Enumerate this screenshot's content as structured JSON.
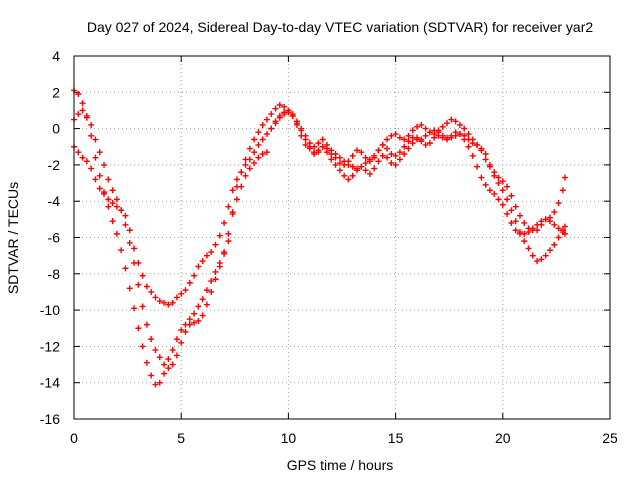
{
  "chart_data": {
    "type": "scatter",
    "title": "Day 027 of 2024, Sidereal Day-to-day VTEC variation (SDTVAR) for receiver yar2",
    "xlabel": "GPS time / hours",
    "ylabel": "SDTVAR / TECUs",
    "xlim": [
      0,
      25
    ],
    "ylim": [
      -16,
      4
    ],
    "xticks": [
      0,
      5,
      10,
      15,
      20,
      25
    ],
    "yticks": [
      -16,
      -14,
      -12,
      -10,
      -8,
      -6,
      -4,
      -2,
      0,
      2,
      4
    ],
    "grid": true,
    "marker": "plus",
    "color": "#ff0000",
    "series": [
      {
        "x": [
          0.0,
          0.2,
          0.4,
          0.6,
          0.8,
          1.0,
          1.2,
          1.4,
          1.6,
          1.8,
          2.0,
          2.2,
          2.4,
          2.6,
          2.8,
          3.0,
          3.2,
          3.4,
          3.6,
          3.8,
          4.0,
          4.2,
          4.4,
          4.6,
          4.8,
          5.0,
          5.2,
          5.4,
          5.6,
          5.8,
          6.0,
          6.2,
          6.4,
          6.6,
          6.8,
          7.0,
          7.2,
          7.4,
          7.6,
          7.8,
          8.0,
          8.2,
          8.4,
          8.6,
          8.8,
          9.0,
          9.2,
          9.4,
          9.6,
          9.8,
          10.0,
          10.2,
          10.4,
          10.6,
          10.8,
          11.0,
          11.2,
          11.4,
          11.6,
          11.8,
          12.0,
          12.2,
          12.4,
          12.6,
          12.8,
          13.0,
          13.2,
          13.4,
          13.6,
          13.8,
          14.0,
          14.2,
          14.4,
          14.6,
          14.8,
          15.0,
          15.2,
          15.4,
          15.6,
          15.8,
          16.0,
          16.2,
          16.4,
          16.6,
          16.8,
          17.0,
          17.2,
          17.4,
          17.6,
          17.8,
          18.0,
          18.2,
          18.4,
          18.6,
          18.8,
          19.0,
          19.2,
          19.4,
          19.6,
          19.8,
          20.0,
          20.2,
          20.4,
          20.6,
          20.8,
          21.0,
          21.2,
          21.4,
          21.6,
          21.8,
          22.0,
          22.2,
          22.4,
          22.6,
          22.8,
          22.9
        ],
        "y": [
          -1.0,
          -1.3,
          -1.6,
          -1.8,
          -2.2,
          -2.8,
          -3.3,
          -3.6,
          -3.9,
          -4.1,
          -4.3,
          -4.5,
          -4.8,
          -5.6,
          -6.6,
          -7.4,
          -8.1,
          -8.7,
          -9.0,
          -9.3,
          -9.5,
          -9.6,
          -9.7,
          -9.6,
          -9.3,
          -9.1,
          -8.9,
          -8.5,
          -8.1,
          -7.6,
          -7.3,
          -7.0,
          -6.8,
          -6.4,
          -5.9,
          -5.2,
          -4.3,
          -3.4,
          -2.8,
          -2.4,
          -2.0,
          -1.7,
          -1.3,
          -0.9,
          -0.6,
          -0.3,
          0.0,
          0.3,
          0.6,
          0.8,
          0.9,
          0.7,
          0.2,
          -0.4,
          -0.9,
          -1.1,
          -1.3,
          -1.2,
          -1.0,
          -1.1,
          -1.4,
          -1.6,
          -1.9,
          -2.0,
          -1.8,
          -1.5,
          -1.2,
          -1.3,
          -1.6,
          -1.8,
          -1.6,
          -1.2,
          -0.9,
          -1.1,
          -1.4,
          -1.5,
          -1.3,
          -1.0,
          -0.7,
          -0.5,
          -0.5,
          -0.6,
          -0.4,
          -0.2,
          -0.1,
          -0.2,
          -0.4,
          -0.5,
          -0.5,
          -0.4,
          -0.3,
          -0.4,
          -0.6,
          -0.8,
          -0.9,
          -1.2,
          -1.7,
          -2.1,
          -2.4,
          -2.7,
          -2.9,
          -3.2,
          -3.7,
          -4.3,
          -4.8,
          -5.2,
          -5.5,
          -5.6,
          -5.6,
          -5.3,
          -5.0,
          -4.9,
          -4.6,
          -4.1,
          -3.4,
          -2.7
        ]
      },
      {
        "x": [
          0.0,
          0.2,
          0.4,
          0.6,
          0.8,
          1.0,
          1.2,
          1.4,
          1.6,
          1.8,
          2.0,
          2.2,
          2.4,
          2.6,
          2.8,
          3.0,
          3.2,
          3.4,
          3.6,
          3.8,
          4.0,
          4.2,
          4.4,
          4.6,
          4.8,
          5.0,
          5.2,
          5.4,
          5.6,
          5.8,
          6.0,
          6.2,
          6.4,
          6.6,
          6.8,
          7.0,
          7.2,
          7.4,
          7.6,
          7.8,
          8.0,
          8.2,
          8.4,
          8.6,
          8.8,
          9.0,
          9.2,
          9.4,
          9.6,
          9.8,
          10.0,
          10.2,
          10.4,
          10.6,
          10.8,
          11.0,
          11.2,
          11.4,
          11.6,
          11.8,
          12.0,
          12.2,
          12.4,
          12.6,
          12.8,
          13.0,
          13.2,
          13.4,
          13.6,
          13.8,
          14.0,
          14.2,
          14.4,
          14.6,
          14.8,
          15.0,
          15.2,
          15.4,
          15.6,
          15.8,
          16.0,
          16.2,
          16.4,
          16.6,
          16.8,
          17.0,
          17.2,
          17.4,
          17.6,
          17.8,
          18.0,
          18.2,
          18.4,
          18.6,
          18.8,
          19.0,
          19.2,
          19.4,
          19.6,
          19.8,
          20.0,
          20.2,
          20.4,
          20.6,
          20.8,
          21.0,
          21.2,
          21.4,
          21.6,
          21.8,
          22.0,
          22.2,
          22.4,
          22.6,
          22.8,
          22.9
        ],
        "y": [
          2.1,
          1.9,
          1.4,
          0.6,
          -0.4,
          -1.6,
          -2.6,
          -3.5,
          -4.3,
          -5.1,
          -5.8,
          -6.7,
          -7.7,
          -8.8,
          -9.9,
          -11.0,
          -12.0,
          -12.9,
          -13.6,
          -14.1,
          -14.0,
          -13.5,
          -12.7,
          -12.2,
          -11.6,
          -11.1,
          -10.8,
          -10.5,
          -10.2,
          -9.8,
          -9.4,
          -8.9,
          -8.4,
          -7.9,
          -7.4,
          -6.9,
          -6.2,
          -4.6,
          -3.2,
          -2.4,
          -1.7,
          -1.1,
          -0.6,
          -0.2,
          0.2,
          0.5,
          0.8,
          1.1,
          1.3,
          1.2,
          1.0,
          0.7,
          0.3,
          0.0,
          -0.4,
          -0.8,
          -1.0,
          -0.8,
          -0.6,
          -0.9,
          -1.2,
          -1.4,
          -1.6,
          -1.8,
          -2.0,
          -2.1,
          -2.2,
          -2.1,
          -1.9,
          -1.7,
          -1.5,
          -1.2,
          -0.9,
          -0.6,
          -0.4,
          -0.3,
          -0.5,
          -0.6,
          -0.4,
          -0.1,
          0.1,
          0.2,
          0.0,
          -0.2,
          -0.3,
          -0.1,
          0.1,
          0.3,
          0.5,
          0.4,
          0.2,
          0.0,
          -0.3,
          -0.6,
          -0.9,
          -1.1,
          -1.4,
          -2.0,
          -2.6,
          -3.0,
          -3.4,
          -3.9,
          -4.5,
          -5.1,
          -5.7,
          -6.2,
          -6.6,
          -7.0,
          -7.3,
          -7.2,
          -7.0,
          -6.7,
          -6.4,
          -6.0,
          -5.6,
          -5.4
        ]
      },
      {
        "x": [
          0.0,
          0.2,
          0.4,
          0.6,
          0.8,
          1.0,
          1.2,
          1.4,
          1.6,
          1.8,
          2.0,
          2.2,
          2.4,
          2.6,
          2.8,
          3.0,
          3.2,
          3.4,
          3.6,
          3.8,
          4.0,
          4.2,
          4.4,
          4.6,
          4.8,
          5.0,
          5.2,
          5.4,
          5.6,
          5.8,
          6.0,
          6.2,
          6.4,
          6.6,
          6.8,
          7.0,
          7.2,
          7.4,
          7.6,
          7.8,
          8.0,
          8.2,
          8.4,
          8.6,
          8.8,
          9.0,
          9.2,
          9.4,
          9.6,
          9.8,
          10.0,
          10.2,
          10.4,
          10.6,
          10.8,
          11.0,
          11.2,
          11.4,
          11.6,
          11.8,
          12.0,
          12.2,
          12.4,
          12.6,
          12.8,
          13.0,
          13.2,
          13.4,
          13.6,
          13.8,
          14.0,
          14.2,
          14.4,
          14.6,
          14.8,
          15.0,
          15.2,
          15.4,
          15.6,
          15.8,
          16.0,
          16.2,
          16.4,
          16.6,
          16.8,
          17.0,
          17.2,
          17.4,
          17.6,
          17.8,
          18.0,
          18.2,
          18.4,
          18.6,
          18.8,
          19.0,
          19.2,
          19.4,
          19.6,
          19.8,
          20.0,
          20.2,
          20.4,
          20.6,
          20.8,
          21.0,
          21.2,
          21.4,
          21.6,
          21.8,
          22.0,
          22.2,
          22.4,
          22.6,
          22.8,
          22.9
        ],
        "y": [
          0.5,
          0.8,
          1.0,
          0.7,
          0.2,
          -0.6,
          -1.3,
          -2.0,
          -2.8,
          -3.4,
          -3.9,
          -4.5,
          -5.3,
          -6.3,
          -7.4,
          -8.6,
          -9.8,
          -10.8,
          -11.6,
          -12.2,
          -12.6,
          -13.0,
          -13.2,
          -13.0,
          -12.5,
          -11.8,
          -11.2,
          -10.8,
          -10.7,
          -10.6,
          -10.3,
          -9.7,
          -9.0,
          -8.3,
          -7.6,
          -6.8,
          -5.8,
          -4.7,
          -3.9,
          -3.2,
          -2.6,
          -2.2,
          -1.9,
          -1.6,
          -1.4,
          -1.3,
          0.0,
          0.4,
          0.7,
          0.9,
          1.0,
          0.8,
          0.4,
          -0.1,
          -0.6,
          -1.0,
          -1.4,
          -1.3,
          -1.0,
          -1.3,
          -1.7,
          -2.0,
          -2.3,
          -2.6,
          -2.8,
          -2.6,
          -2.3,
          -2.1,
          -2.3,
          -2.5,
          -2.2,
          -1.8,
          -1.5,
          -1.6,
          -1.9,
          -2.0,
          -1.7,
          -1.4,
          -1.1,
          -0.8,
          -0.6,
          -0.7,
          -0.9,
          -0.8,
          -0.5,
          -0.4,
          -0.5,
          -0.6,
          -0.4,
          -0.2,
          -0.3,
          -0.6,
          -1.0,
          -1.5,
          -2.1,
          -2.7,
          -3.1,
          -3.4,
          -3.6,
          -3.9,
          -4.2,
          -4.7,
          -5.2,
          -5.6,
          -5.8,
          -5.8,
          -5.7,
          -5.5,
          -5.3,
          -5.1,
          -5.0,
          -5.1,
          -5.3,
          -5.5,
          -5.7,
          -5.8
        ]
      }
    ]
  }
}
